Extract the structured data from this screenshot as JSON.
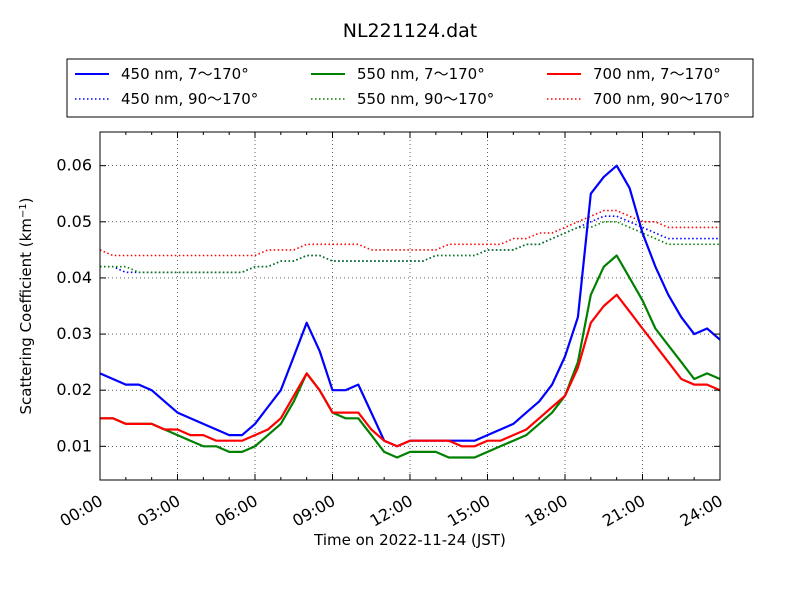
{
  "chart_data": {
    "type": "line",
    "title": "NL221124.dat",
    "xlabel": "Time on 2022-11-24 (JST)",
    "ylabel": "Scattering Coefficient (km",
    "ylabel_sup": "−1",
    "ylabel_end": ")",
    "x_unit": "hours",
    "xlim": [
      0,
      24
    ],
    "ylim": [
      0.004,
      0.066
    ],
    "x_ticks": [
      0,
      3,
      6,
      9,
      12,
      15,
      18,
      21,
      24
    ],
    "x_tick_labels": [
      "00:00",
      "03:00",
      "06:00",
      "09:00",
      "12:00",
      "15:00",
      "18:00",
      "21:00",
      "24:00"
    ],
    "y_ticks": [
      0.01,
      0.02,
      0.03,
      0.04,
      0.05,
      0.06
    ],
    "y_tick_labels": [
      "0.01",
      "0.02",
      "0.03",
      "0.04",
      "0.05",
      "0.06"
    ],
    "grid": true,
    "legend_position": "top",
    "legend_columns": 3,
    "x": [
      0,
      0.5,
      1,
      1.5,
      2,
      2.5,
      3,
      3.5,
      4,
      4.5,
      5,
      5.5,
      6,
      6.5,
      7,
      7.5,
      8,
      8.5,
      9,
      9.5,
      10,
      10.5,
      11,
      11.5,
      12,
      12.5,
      13,
      13.5,
      14,
      14.5,
      15,
      15.5,
      16,
      16.5,
      17,
      17.5,
      18,
      18.5,
      19,
      19.5,
      20,
      20.5,
      21,
      21.5,
      22,
      22.5,
      23,
      23.5,
      24
    ],
    "series": [
      {
        "name": "450 nm, 7～170°",
        "color": "#0000ff",
        "style": "solid",
        "values": [
          0.023,
          0.022,
          0.021,
          0.021,
          0.02,
          0.018,
          0.016,
          0.015,
          0.014,
          0.013,
          0.012,
          0.012,
          0.014,
          0.017,
          0.02,
          0.026,
          0.032,
          0.027,
          0.02,
          0.02,
          0.021,
          0.016,
          0.011,
          0.01,
          0.011,
          0.011,
          0.011,
          0.011,
          0.011,
          0.011,
          0.012,
          0.013,
          0.014,
          0.016,
          0.018,
          0.021,
          0.026,
          0.033,
          0.055,
          0.058,
          0.06,
          0.056,
          0.048,
          0.042,
          0.037,
          0.033,
          0.03,
          0.031,
          0.029
        ]
      },
      {
        "name": "450 nm, 90～170°",
        "color": "#0000ff",
        "style": "dotted",
        "values": [
          0.042,
          0.042,
          0.041,
          0.041,
          0.041,
          0.041,
          0.041,
          0.041,
          0.041,
          0.041,
          0.041,
          0.041,
          0.042,
          0.042,
          0.043,
          0.043,
          0.044,
          0.044,
          0.043,
          0.043,
          0.043,
          0.043,
          0.043,
          0.043,
          0.043,
          0.043,
          0.044,
          0.044,
          0.044,
          0.044,
          0.045,
          0.045,
          0.045,
          0.046,
          0.046,
          0.047,
          0.048,
          0.049,
          0.05,
          0.051,
          0.051,
          0.05,
          0.049,
          0.048,
          0.047,
          0.047,
          0.047,
          0.047,
          0.047
        ]
      },
      {
        "name": "550 nm, 7～170°",
        "color": "#008000",
        "style": "solid",
        "values": [
          0.015,
          0.015,
          0.014,
          0.014,
          0.014,
          0.013,
          0.012,
          0.011,
          0.01,
          0.01,
          0.009,
          0.009,
          0.01,
          0.012,
          0.014,
          0.018,
          0.023,
          0.02,
          0.016,
          0.015,
          0.015,
          0.012,
          0.009,
          0.008,
          0.009,
          0.009,
          0.009,
          0.008,
          0.008,
          0.008,
          0.009,
          0.01,
          0.011,
          0.012,
          0.014,
          0.016,
          0.019,
          0.025,
          0.037,
          0.042,
          0.044,
          0.04,
          0.036,
          0.031,
          0.028,
          0.025,
          0.022,
          0.023,
          0.022
        ]
      },
      {
        "name": "550 nm, 90～170°",
        "color": "#008000",
        "style": "dotted",
        "values": [
          0.042,
          0.042,
          0.042,
          0.041,
          0.041,
          0.041,
          0.041,
          0.041,
          0.041,
          0.041,
          0.041,
          0.041,
          0.042,
          0.042,
          0.043,
          0.043,
          0.044,
          0.044,
          0.043,
          0.043,
          0.043,
          0.043,
          0.043,
          0.043,
          0.043,
          0.043,
          0.044,
          0.044,
          0.044,
          0.044,
          0.045,
          0.045,
          0.045,
          0.046,
          0.046,
          0.047,
          0.048,
          0.049,
          0.049,
          0.05,
          0.05,
          0.049,
          0.048,
          0.047,
          0.046,
          0.046,
          0.046,
          0.046,
          0.046
        ]
      },
      {
        "name": "700 nm, 7～170°",
        "color": "#ff0000",
        "style": "solid",
        "values": [
          0.015,
          0.015,
          0.014,
          0.014,
          0.014,
          0.013,
          0.013,
          0.012,
          0.012,
          0.011,
          0.011,
          0.011,
          0.012,
          0.013,
          0.015,
          0.019,
          0.023,
          0.02,
          0.016,
          0.016,
          0.016,
          0.013,
          0.011,
          0.01,
          0.011,
          0.011,
          0.011,
          0.011,
          0.01,
          0.01,
          0.011,
          0.011,
          0.012,
          0.013,
          0.015,
          0.017,
          0.019,
          0.024,
          0.032,
          0.035,
          0.037,
          0.034,
          0.031,
          0.028,
          0.025,
          0.022,
          0.021,
          0.021,
          0.02
        ]
      },
      {
        "name": "700 nm, 90～170°",
        "color": "#ff0000",
        "style": "dotted",
        "values": [
          0.045,
          0.044,
          0.044,
          0.044,
          0.044,
          0.044,
          0.044,
          0.044,
          0.044,
          0.044,
          0.044,
          0.044,
          0.044,
          0.045,
          0.045,
          0.045,
          0.046,
          0.046,
          0.046,
          0.046,
          0.046,
          0.045,
          0.045,
          0.045,
          0.045,
          0.045,
          0.045,
          0.046,
          0.046,
          0.046,
          0.046,
          0.046,
          0.047,
          0.047,
          0.048,
          0.048,
          0.049,
          0.05,
          0.051,
          0.052,
          0.052,
          0.051,
          0.05,
          0.05,
          0.049,
          0.049,
          0.049,
          0.049,
          0.049
        ]
      }
    ]
  }
}
